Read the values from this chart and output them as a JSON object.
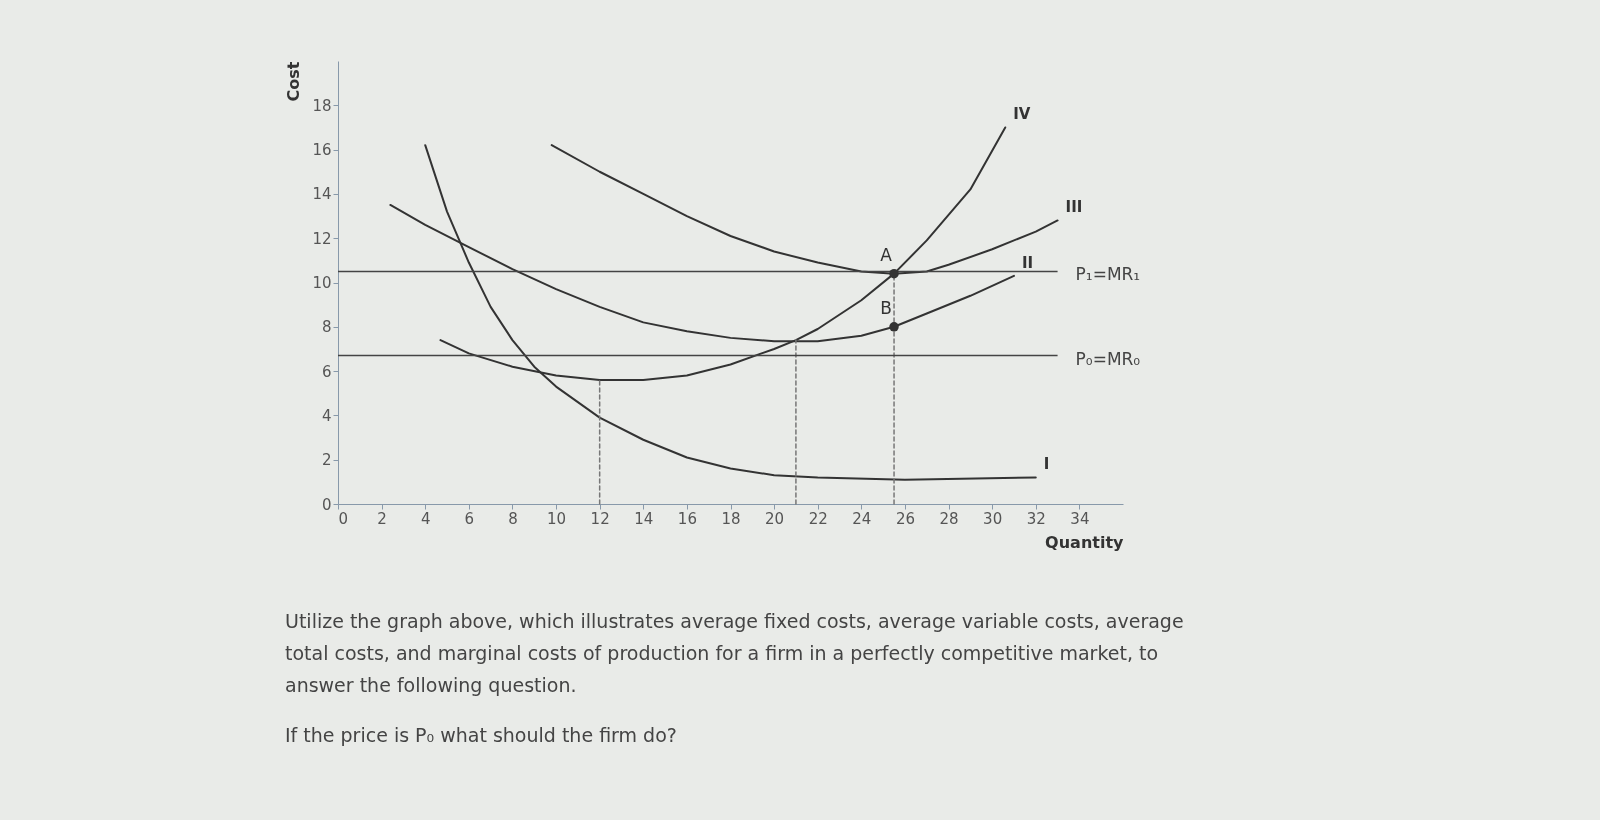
{
  "chart_data": {
    "type": "line",
    "xlabel": "Quantity",
    "ylabel": "Cost",
    "xlim": [
      0,
      36
    ],
    "ylim": [
      0,
      20
    ],
    "xticks": [
      0,
      2,
      4,
      6,
      8,
      10,
      12,
      14,
      16,
      18,
      20,
      22,
      24,
      26,
      28,
      30,
      32,
      34
    ],
    "yticks": [
      0,
      2,
      4,
      6,
      8,
      10,
      12,
      14,
      16,
      18
    ],
    "grid": false,
    "marker": "none",
    "series": [
      {
        "name": "I",
        "color": "#333333",
        "x": [
          4,
          5,
          6,
          7,
          8,
          9,
          10,
          12,
          14,
          16,
          18,
          20,
          22,
          26,
          32
        ],
        "values": [
          16.2,
          13.2,
          10.9,
          8.9,
          7.4,
          6.2,
          5.3,
          3.9,
          2.9,
          2.1,
          1.6,
          1.3,
          1.2,
          1.1,
          1.2
        ]
      },
      {
        "name": "II",
        "color": "#333333",
        "x": [
          2.4,
          4,
          6,
          8,
          10,
          12,
          14,
          16,
          18,
          20,
          22,
          24,
          25.5,
          27,
          29,
          31
        ],
        "values": [
          13.5,
          12.6,
          11.6,
          10.6,
          9.7,
          8.9,
          8.2,
          7.8,
          7.5,
          7.35,
          7.35,
          7.6,
          8.0,
          8.6,
          9.4,
          10.3
        ]
      },
      {
        "name": "III",
        "color": "#333333",
        "x": [
          9.8,
          12,
          14,
          16,
          18,
          20,
          22,
          24,
          25.5,
          27,
          28,
          30,
          32,
          33
        ],
        "values": [
          16.2,
          15.0,
          14.0,
          13.0,
          12.1,
          11.4,
          10.9,
          10.5,
          10.4,
          10.5,
          10.8,
          11.5,
          12.3,
          12.8
        ]
      },
      {
        "name": "IV",
        "color": "#333333",
        "x": [
          4.7,
          6,
          8,
          10,
          12,
          14,
          16,
          18,
          20,
          21,
          22,
          24,
          25.5,
          27,
          29,
          30.6
        ],
        "values": [
          7.4,
          6.8,
          6.2,
          5.8,
          5.6,
          5.6,
          5.8,
          6.3,
          7.0,
          7.4,
          7.9,
          9.2,
          10.4,
          11.9,
          14.2,
          17.0
        ]
      },
      {
        "color": "#777777",
        "line_style": "dashed",
        "x": [
          12,
          12
        ],
        "values": [
          0,
          5.6
        ]
      },
      {
        "color": "#777777",
        "line_style": "dashed",
        "x": [
          21,
          21
        ],
        "values": [
          0,
          7.4
        ]
      },
      {
        "color": "#777777",
        "line_style": "dashed",
        "x": [
          25.5,
          25.5
        ],
        "values": [
          0,
          10.4
        ]
      }
    ],
    "ref_lines": [
      {
        "axis": "y",
        "value": 10.5,
        "label": "P₁=MR₁",
        "color": "#444444"
      },
      {
        "axis": "y",
        "value": 6.7,
        "label": "P₀=MR₀",
        "color": "#444444"
      }
    ],
    "annotations": [
      {
        "text": "A",
        "x": 25.5,
        "y": 10.4
      },
      {
        "text": "B",
        "x": 25.5,
        "y": 8.0
      },
      "Utilize the graph above, which illustrates average fixed costs, average variable costs, average total costs, and marginal costs of production for a firm in a perfectly competitive market,  to answer the following question.",
      "If the price is P₀ what should the firm do?"
    ]
  }
}
